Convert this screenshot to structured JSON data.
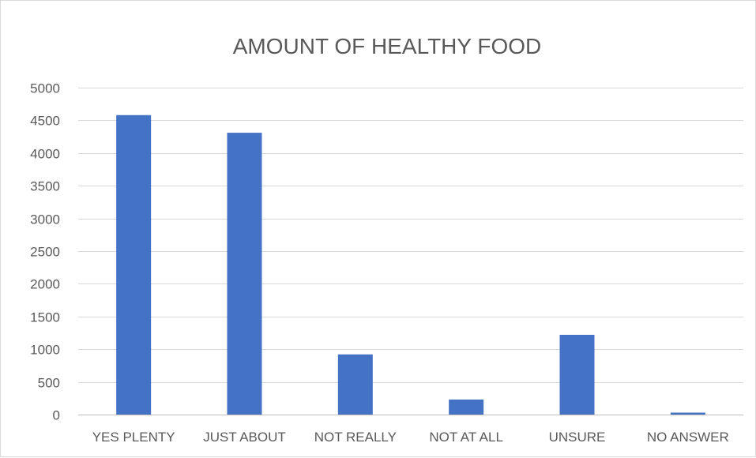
{
  "chart_data": {
    "type": "bar",
    "title": "AMOUNT OF HEALTHY FOOD",
    "xlabel": "",
    "ylabel": "",
    "categories": [
      "YES PLENTY",
      "JUST ABOUT",
      "NOT REALLY",
      "NOT AT ALL",
      "UNSURE",
      "NO ANSWER"
    ],
    "series": [
      {
        "values": [
          4580,
          4310,
          920,
          230,
          1220,
          30
        ]
      }
    ],
    "ylim": [
      0,
      5000
    ],
    "yticks": [
      0,
      500,
      1000,
      1500,
      2000,
      2500,
      3000,
      3500,
      4000,
      4500,
      5000
    ],
    "grid": true,
    "legend": "none",
    "colors": {
      "bar": "#4472c4"
    }
  }
}
